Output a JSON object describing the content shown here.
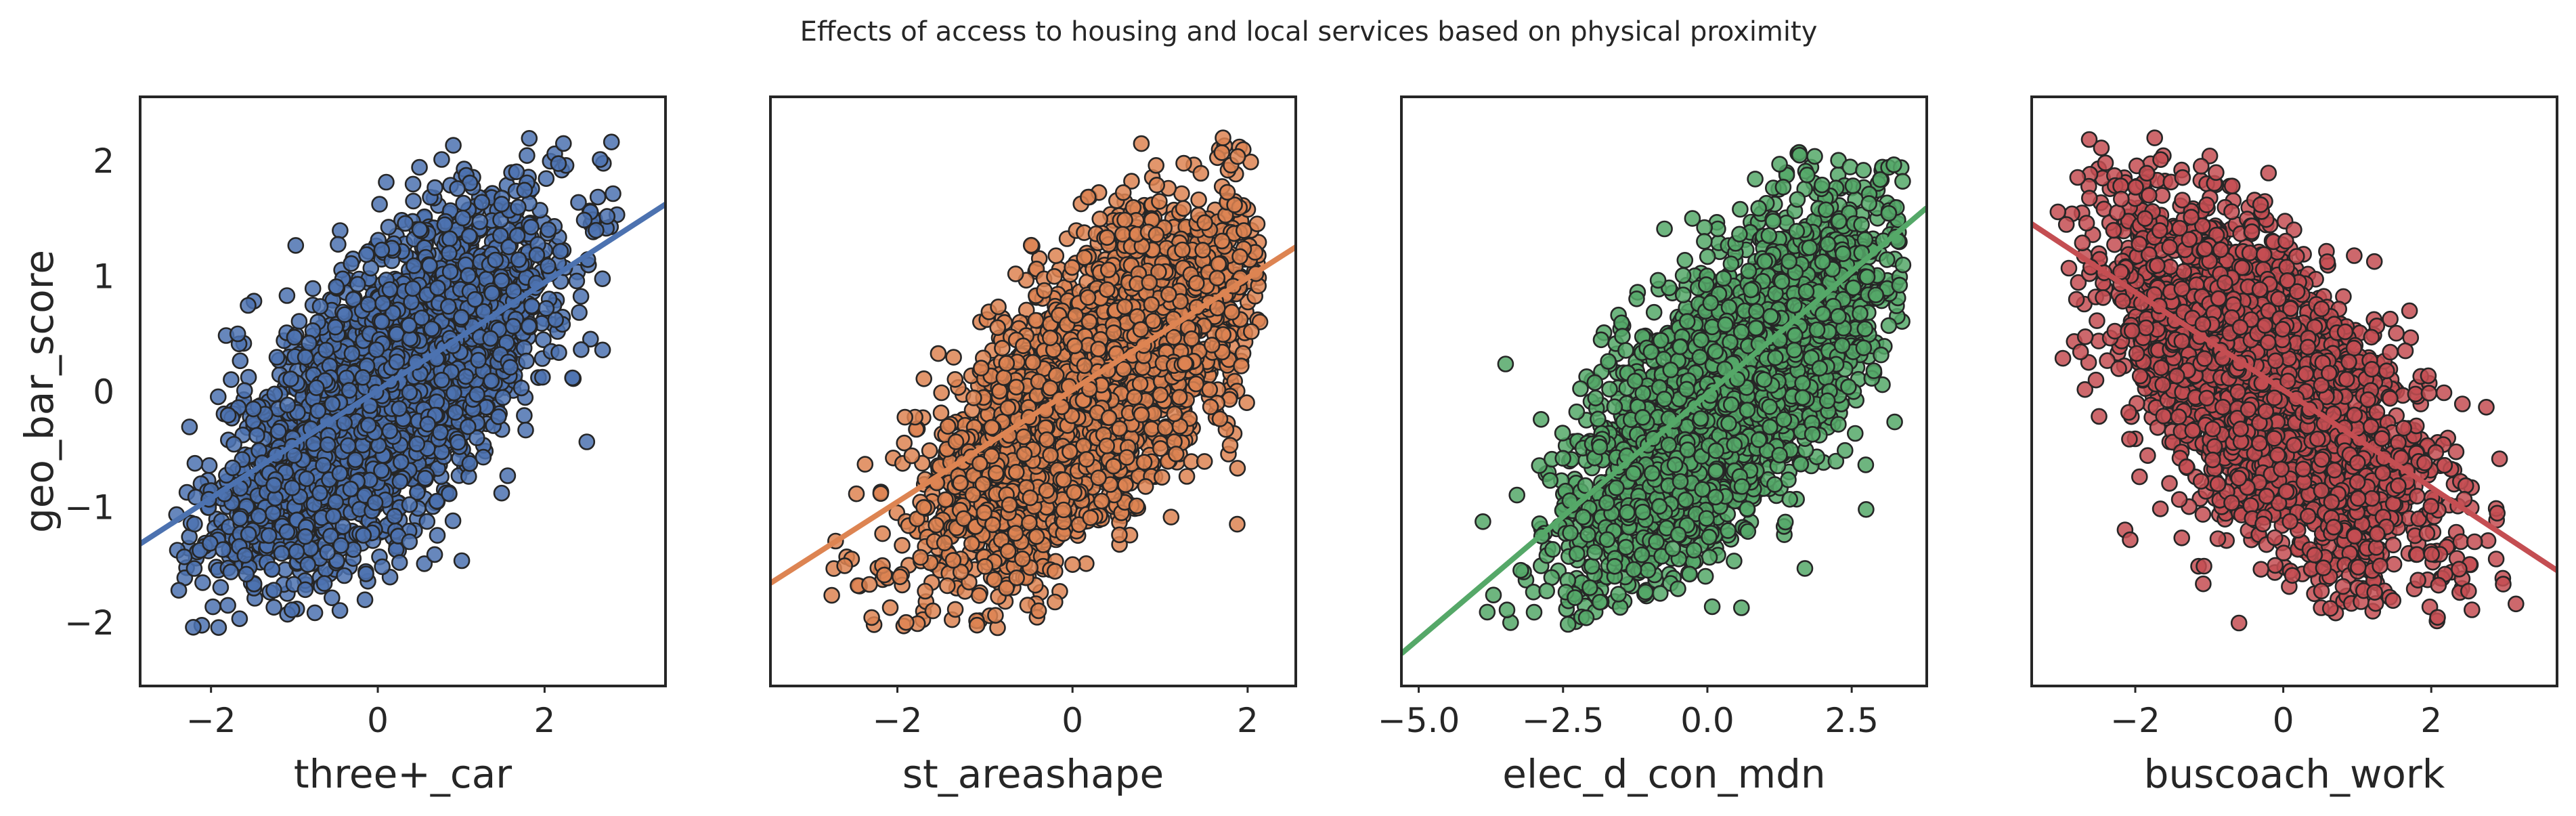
{
  "figure": {
    "title": "Effects of access to housing and local services based on physical proximity"
  },
  "chart_data": [
    {
      "type": "scatter",
      "title": "",
      "xlabel": "three+_car",
      "ylabel": "geo_bar_score",
      "xlim": [
        -2.85,
        3.45
      ],
      "ylim": [
        -2.55,
        2.55
      ],
      "xticks": [
        -2,
        0,
        2
      ],
      "xtick_labels": [
        "−2",
        "0",
        "2"
      ],
      "yticks": [
        -2,
        -1,
        0,
        1,
        2
      ],
      "ytick_labels": [
        "−2",
        "−1",
        "0",
        "1",
        "2"
      ],
      "color": "#4C72B0",
      "grid": false,
      "legend": "none",
      "n_points_approx": 3000,
      "points_cloud": {
        "x_mean": 0.1,
        "x_sd": 1.0,
        "correlation": 0.7,
        "y_mean": 0.0,
        "y_sd": 0.8,
        "x_range": [
          -2.5,
          2.9
        ],
        "y_range": [
          -2.05,
          2.25
        ]
      },
      "trend_line": {
        "x": [
          -2.85,
          3.45
        ],
        "y": [
          -1.32,
          1.62
        ]
      }
    },
    {
      "type": "scatter",
      "title": "",
      "xlabel": "st_areashape",
      "ylabel": "",
      "xlim": [
        -3.45,
        2.55
      ],
      "ylim": [
        -2.55,
        2.55
      ],
      "xticks": [
        -2,
        0,
        2
      ],
      "xtick_labels": [
        "−2",
        "0",
        "2"
      ],
      "yticks": [],
      "ytick_labels": [],
      "color": "#DD8452",
      "grid": false,
      "legend": "none",
      "n_points_approx": 3000,
      "points_cloud": {
        "x_mean": 0.2,
        "x_sd": 0.95,
        "correlation": 0.7,
        "y_mean": 0.0,
        "y_sd": 0.8,
        "x_range": [
          -3.1,
          2.15
        ],
        "y_range": [
          -2.05,
          2.25
        ]
      },
      "trend_line": {
        "x": [
          -3.45,
          2.55
        ],
        "y": [
          -1.66,
          1.25
        ]
      }
    },
    {
      "type": "scatter",
      "title": "",
      "xlabel": "elec_d_con_mdn",
      "ylabel": "",
      "xlim": [
        -5.3,
        3.8
      ],
      "ylim": [
        -2.55,
        2.55
      ],
      "xticks": [
        -5.0,
        -2.5,
        0.0,
        2.5
      ],
      "xtick_labels": [
        "−5.0",
        "−2.5",
        "0.0",
        "2.5"
      ],
      "yticks": [],
      "ytick_labels": [],
      "color": "#55A868",
      "grid": false,
      "legend": "none",
      "n_points_approx": 3000,
      "points_cloud": {
        "x_mean": 0.4,
        "x_sd": 1.35,
        "correlation": 0.7,
        "y_mean": 0.0,
        "y_sd": 0.8,
        "x_range": [
          -4.1,
          3.4
        ],
        "y_range": [
          -2.05,
          2.25
        ]
      },
      "trend_line": {
        "x": [
          -5.3,
          3.8
        ],
        "y": [
          -2.27,
          1.59
        ]
      }
    },
    {
      "type": "scatter",
      "title": "",
      "xlabel": "buscoach_work",
      "ylabel": "",
      "xlim": [
        -3.4,
        3.7
      ],
      "ylim": [
        -2.55,
        2.55
      ],
      "xticks": [
        -2,
        0,
        2
      ],
      "xtick_labels": [
        "−2",
        "0",
        "2"
      ],
      "yticks": [],
      "ytick_labels": [],
      "color": "#C44E52",
      "grid": false,
      "legend": "none",
      "n_points_approx": 3000,
      "points_cloud": {
        "x_mean": -0.2,
        "x_sd": 1.05,
        "correlation": -0.62,
        "y_mean": 0.0,
        "y_sd": 0.8,
        "x_range": [
          -3.1,
          3.2
        ],
        "y_range": [
          -2.05,
          2.25
        ]
      },
      "trend_line": {
        "x": [
          -3.4,
          3.7
        ],
        "y": [
          1.45,
          -1.55
        ]
      }
    }
  ]
}
